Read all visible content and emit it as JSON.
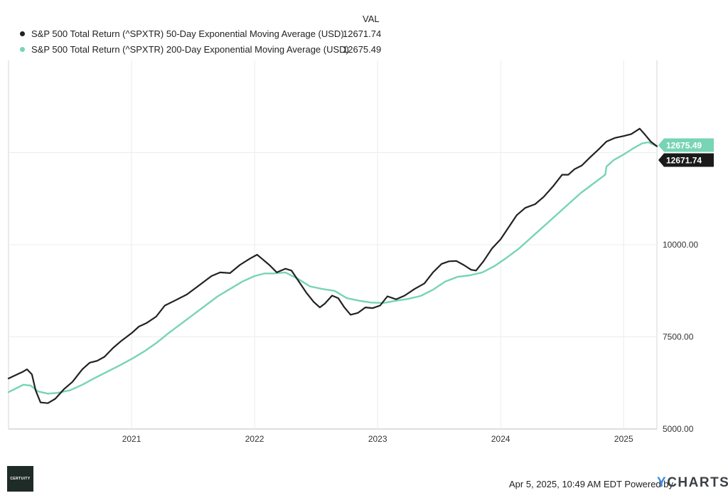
{
  "legend": {
    "header": "VAL",
    "entries": [
      {
        "label": "S&P 500 Total Return (^SPXTR) 50-Day Exponential Moving Average (USD)",
        "value": "12671.74",
        "color": "#222222"
      },
      {
        "label": "S&P 500 Total Return (^SPXTR) 200-Day Exponential Moving Average (USD)",
        "value": "12675.49",
        "color": "#77d4b4"
      }
    ]
  },
  "chart_data": {
    "type": "line",
    "title": "",
    "xlabel": "",
    "ylabel": "",
    "x_ticks": [
      "2021",
      "2022",
      "2023",
      "2024",
      "2025"
    ],
    "y_ticks": [
      "5000.00",
      "7500.00",
      "10000.00"
    ],
    "ylim": [
      5000,
      15000
    ],
    "xlim": [
      2020.0,
      2025.27
    ],
    "grid": true,
    "y_axis_side": "right",
    "series": [
      {
        "name": "S&P 500 Total Return (^SPXTR) 50-Day Exponential Moving Average (USD)",
        "color": "#222222",
        "end_label": "12671.74",
        "points": [
          [
            2020.0,
            6370
          ],
          [
            2020.05,
            6450
          ],
          [
            2020.12,
            6560
          ],
          [
            2020.15,
            6620
          ],
          [
            2020.19,
            6480
          ],
          [
            2020.22,
            6050
          ],
          [
            2020.26,
            5720
          ],
          [
            2020.32,
            5700
          ],
          [
            2020.38,
            5820
          ],
          [
            2020.45,
            6080
          ],
          [
            2020.52,
            6280
          ],
          [
            2020.6,
            6620
          ],
          [
            2020.66,
            6800
          ],
          [
            2020.72,
            6850
          ],
          [
            2020.78,
            6960
          ],
          [
            2020.85,
            7200
          ],
          [
            2020.92,
            7400
          ],
          [
            2021.0,
            7600
          ],
          [
            2021.06,
            7780
          ],
          [
            2021.12,
            7870
          ],
          [
            2021.2,
            8050
          ],
          [
            2021.27,
            8350
          ],
          [
            2021.35,
            8480
          ],
          [
            2021.45,
            8650
          ],
          [
            2021.55,
            8900
          ],
          [
            2021.65,
            9150
          ],
          [
            2021.72,
            9250
          ],
          [
            2021.8,
            9230
          ],
          [
            2021.88,
            9450
          ],
          [
            2021.96,
            9620
          ],
          [
            2022.02,
            9730
          ],
          [
            2022.06,
            9620
          ],
          [
            2022.12,
            9450
          ],
          [
            2022.18,
            9250
          ],
          [
            2022.25,
            9350
          ],
          [
            2022.3,
            9300
          ],
          [
            2022.36,
            9000
          ],
          [
            2022.42,
            8700
          ],
          [
            2022.48,
            8450
          ],
          [
            2022.53,
            8300
          ],
          [
            2022.57,
            8400
          ],
          [
            2022.63,
            8620
          ],
          [
            2022.68,
            8550
          ],
          [
            2022.73,
            8300
          ],
          [
            2022.78,
            8100
          ],
          [
            2022.84,
            8150
          ],
          [
            2022.9,
            8300
          ],
          [
            2022.96,
            8280
          ],
          [
            2023.02,
            8350
          ],
          [
            2023.08,
            8600
          ],
          [
            2023.15,
            8520
          ],
          [
            2023.22,
            8620
          ],
          [
            2023.3,
            8800
          ],
          [
            2023.38,
            8950
          ],
          [
            2023.45,
            9250
          ],
          [
            2023.52,
            9480
          ],
          [
            2023.58,
            9550
          ],
          [
            2023.64,
            9560
          ],
          [
            2023.7,
            9450
          ],
          [
            2023.76,
            9320
          ],
          [
            2023.8,
            9300
          ],
          [
            2023.86,
            9550
          ],
          [
            2023.93,
            9900
          ],
          [
            2024.0,
            10150
          ],
          [
            2024.06,
            10450
          ],
          [
            2024.13,
            10800
          ],
          [
            2024.2,
            11000
          ],
          [
            2024.28,
            11100
          ],
          [
            2024.35,
            11300
          ],
          [
            2024.43,
            11600
          ],
          [
            2024.5,
            11900
          ],
          [
            2024.55,
            11900
          ],
          [
            2024.6,
            12050
          ],
          [
            2024.66,
            12150
          ],
          [
            2024.72,
            12350
          ],
          [
            2024.8,
            12600
          ],
          [
            2024.86,
            12800
          ],
          [
            2024.93,
            12900
          ],
          [
            2025.0,
            12950
          ],
          [
            2025.06,
            13000
          ],
          [
            2025.13,
            13150
          ],
          [
            2025.17,
            13000
          ],
          [
            2025.22,
            12800
          ],
          [
            2025.27,
            12672
          ]
        ]
      },
      {
        "name": "S&P 500 Total Return (^SPXTR) 200-Day Exponential Moving Average (USD)",
        "color": "#77d4b4",
        "end_label": "12675.49",
        "points": [
          [
            2020.0,
            6000
          ],
          [
            2020.06,
            6100
          ],
          [
            2020.12,
            6200
          ],
          [
            2020.18,
            6180
          ],
          [
            2020.24,
            6020
          ],
          [
            2020.32,
            5960
          ],
          [
            2020.4,
            5980
          ],
          [
            2020.5,
            6050
          ],
          [
            2020.6,
            6200
          ],
          [
            2020.7,
            6380
          ],
          [
            2020.8,
            6550
          ],
          [
            2020.9,
            6720
          ],
          [
            2021.0,
            6900
          ],
          [
            2021.1,
            7100
          ],
          [
            2021.2,
            7330
          ],
          [
            2021.3,
            7600
          ],
          [
            2021.4,
            7850
          ],
          [
            2021.5,
            8100
          ],
          [
            2021.6,
            8350
          ],
          [
            2021.7,
            8600
          ],
          [
            2021.8,
            8800
          ],
          [
            2021.9,
            9000
          ],
          [
            2022.0,
            9150
          ],
          [
            2022.08,
            9220
          ],
          [
            2022.15,
            9220
          ],
          [
            2022.25,
            9250
          ],
          [
            2022.35,
            9080
          ],
          [
            2022.45,
            8870
          ],
          [
            2022.55,
            8800
          ],
          [
            2022.65,
            8750
          ],
          [
            2022.75,
            8550
          ],
          [
            2022.85,
            8480
          ],
          [
            2022.95,
            8430
          ],
          [
            2023.05,
            8420
          ],
          [
            2023.15,
            8480
          ],
          [
            2023.25,
            8530
          ],
          [
            2023.35,
            8610
          ],
          [
            2023.45,
            8780
          ],
          [
            2023.55,
            9000
          ],
          [
            2023.65,
            9130
          ],
          [
            2023.75,
            9170
          ],
          [
            2023.85,
            9250
          ],
          [
            2023.95,
            9420
          ],
          [
            2024.05,
            9650
          ],
          [
            2024.15,
            9900
          ],
          [
            2024.25,
            10200
          ],
          [
            2024.35,
            10500
          ],
          [
            2024.45,
            10800
          ],
          [
            2024.55,
            11100
          ],
          [
            2024.65,
            11400
          ],
          [
            2024.75,
            11650
          ],
          [
            2024.85,
            11900
          ],
          [
            2024.86,
            12120
          ],
          [
            2024.92,
            12300
          ],
          [
            2025.0,
            12450
          ],
          [
            2025.08,
            12620
          ],
          [
            2025.15,
            12750
          ],
          [
            2025.2,
            12780
          ],
          [
            2025.27,
            12675
          ]
        ]
      }
    ]
  },
  "footer": {
    "logo_text": "CERTUITY",
    "timestamp": "Apr 5, 2025, 10:49 AM EDT Powered by",
    "brand_y": "Y",
    "brand_rest": "CHARTS"
  }
}
